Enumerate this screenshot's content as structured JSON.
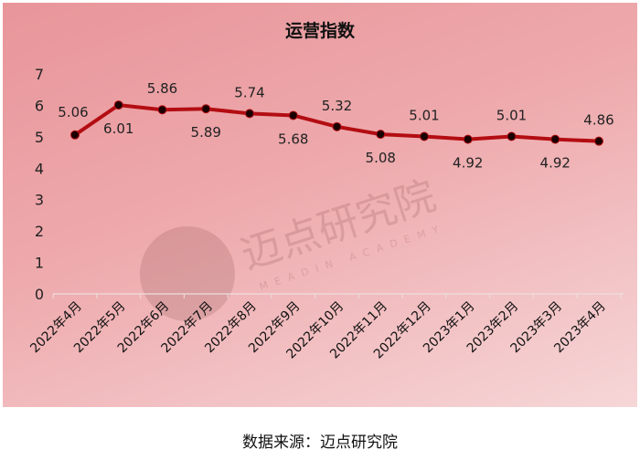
{
  "chart_data": {
    "type": "line",
    "title": "运营指数",
    "categories": [
      "2022年4月",
      "2022年5月",
      "2022年6月",
      "2022年7月",
      "2022年8月",
      "2022年9月",
      "2022年10月",
      "2022年11月",
      "2022年12月",
      "2023年1月",
      "2023年2月",
      "2023年3月",
      "2023年4月"
    ],
    "values": [
      5.06,
      6.01,
      5.86,
      5.89,
      5.74,
      5.68,
      5.32,
      5.08,
      5.01,
      4.92,
      5.01,
      4.92,
      4.86
    ],
    "data_labels": [
      "5.06",
      "6.01",
      "5.86",
      "5.89",
      "5.74",
      "5.68",
      "5.32",
      "5.08",
      "5.01",
      "4.92",
      "5.01",
      "4.92",
      "4.86"
    ],
    "yticks": [
      "0",
      "1",
      "2",
      "3",
      "4",
      "5",
      "6",
      "7"
    ],
    "ylim": [
      0,
      7
    ],
    "xlabel": "",
    "ylabel": "",
    "grid": false,
    "line_color": "#b30d12",
    "marker_color": "#1a0000"
  },
  "watermark": {
    "cn": "迈点研究院",
    "en": "MEADIN ACADEMY"
  },
  "source": "数据来源：迈点研究院"
}
